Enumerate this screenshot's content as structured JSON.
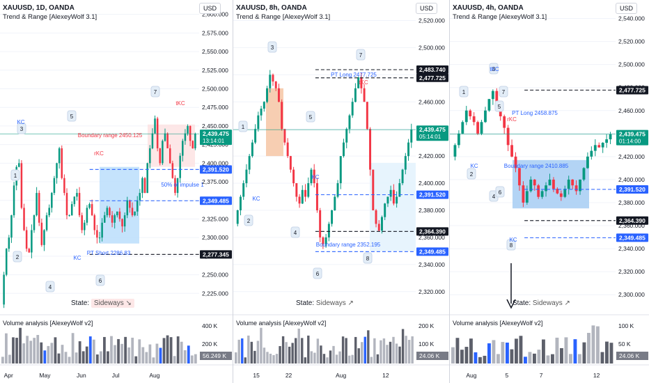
{
  "colors": {
    "up": "#089981",
    "down": "#f23645",
    "blue": "#2962ff",
    "grid": "#f0f3fa"
  },
  "panels": [
    {
      "title": "XAUUSD, 1D, OANDA",
      "subtitle": "Trend & Range [AlexeyWolf 3.1]",
      "currency": "USD",
      "state_label": "State:",
      "state_value": "Sideways ↘",
      "volume_title": "Volume analysis [AlexeyWolf v2]",
      "price_ticks": [
        "2,600.000",
        "2,575.000",
        "2,550.000",
        "2,525.000",
        "2,500.000",
        "2,475.000",
        "2,450.000",
        "2,425.000",
        "2,400.000",
        "2,375.000",
        "2,350.000",
        "2,325.000",
        "2,300.000",
        "2,275.000",
        "2,250.000",
        "2,225.000"
      ],
      "price_badges": [
        {
          "text": "2,439.475",
          "sub": "13:14:01",
          "kind": "green",
          "price": 2439.475
        },
        {
          "text": "2,391.520",
          "kind": "blue",
          "price": 2391.52
        },
        {
          "text": "2,349.485",
          "kind": "blue",
          "price": 2349.485
        },
        {
          "text": "2,277.345",
          "kind": "black",
          "price": 2277.345
        }
      ],
      "volume_badges": [
        {
          "text": "400 K",
          "kind": "tick"
        },
        {
          "text": "200 K",
          "kind": "tick"
        },
        {
          "text": "56.249 K",
          "kind": "gray"
        }
      ],
      "x_labels": [
        "Apr",
        "May",
        "Jun",
        "Jul",
        "Aug"
      ],
      "annotations": [
        "1",
        "2",
        "3",
        "4",
        "5",
        "6",
        "7",
        "KC",
        "rKC",
        "tKC",
        "KC",
        "Boundary range 2450.125",
        "50% of impulse 1",
        "PT Short 2286.83"
      ]
    },
    {
      "title": "XAUUSD, 8h, OANDA",
      "subtitle": "Trend & Range [AlexeyWolf 3.1]",
      "currency": "USD",
      "state_label": "State:",
      "state_value": "Sideways ↗",
      "volume_title": "Volume analysis [AlexeyWolf v2]",
      "price_ticks": [
        "2,520.000",
        "2,500.000",
        "2,480.000",
        "2,460.000",
        "2,440.000",
        "2,420.000",
        "2,400.000",
        "2,380.000",
        "2,360.000",
        "2,340.000",
        "2,320.000"
      ],
      "price_badges": [
        {
          "text": "2,483.740",
          "kind": "black",
          "price": 2483.74
        },
        {
          "text": "2,477.725",
          "kind": "black",
          "price": 2477.725
        },
        {
          "text": "2,439.475",
          "sub": "05:14:01",
          "kind": "green",
          "price": 2439.475
        },
        {
          "text": "2,391.520",
          "kind": "blue",
          "price": 2391.52
        },
        {
          "text": "2,364.390",
          "kind": "black",
          "price": 2364.39
        },
        {
          "text": "2,349.485",
          "kind": "blue",
          "price": 2349.485
        }
      ],
      "volume_badges": [
        {
          "text": "200 K",
          "kind": "tick"
        },
        {
          "text": "100 K",
          "kind": "tick"
        },
        {
          "text": "24.06 K",
          "kind": "gray"
        }
      ],
      "x_labels": [
        "15",
        "22",
        "Aug",
        "12"
      ],
      "annotations": [
        "1",
        "2",
        "3",
        "4",
        "5",
        "6",
        "7",
        "8",
        "KC",
        "KC",
        "tKC",
        "PT Long 2477.725",
        "Boundary range 2352.195"
      ]
    },
    {
      "title": "XAUUSD, 4h, OANDA",
      "subtitle": "Trend & Range [AlexeyWolf 3.1]",
      "currency": "USD",
      "state_label": "State:",
      "state_value": "Sideways ↗",
      "volume_title": "Volume analysis [AlexeyWolf v2]",
      "price_ticks": [
        "2,540.000",
        "2,520.000",
        "2,500.000",
        "2,480.000",
        "2,460.000",
        "2,440.000",
        "2,420.000",
        "2,400.000",
        "2,380.000",
        "2,360.000",
        "2,340.000",
        "2,320.000",
        "2,300.000"
      ],
      "price_badges": [
        {
          "text": "2,477.725",
          "kind": "black",
          "price": 2477.725
        },
        {
          "text": "2,439.475",
          "sub": "01:14:00",
          "kind": "green",
          "price": 2439.475
        },
        {
          "text": "2,391.520",
          "kind": "blue",
          "price": 2391.52
        },
        {
          "text": "2,364.390",
          "kind": "black",
          "price": 2364.39
        },
        {
          "text": "2,349.485",
          "kind": "blue",
          "price": 2349.485
        }
      ],
      "volume_badges": [
        {
          "text": "100 K",
          "kind": "tick"
        },
        {
          "text": "50 K",
          "kind": "tick"
        },
        {
          "text": "24.06 K",
          "kind": "gray"
        }
      ],
      "x_labels": [
        "Aug",
        "5",
        "7",
        "12"
      ],
      "annotations": [
        "1",
        "2",
        "3",
        "4",
        "5",
        "6",
        "7",
        "8",
        "KC",
        "KC",
        "rKC",
        "tKC",
        "PT Long 2458.875",
        "Boundary range 2410.885"
      ]
    }
  ],
  "chart_data": [
    {
      "type": "candlestick",
      "title": "XAUUSD, 1D, OANDA",
      "ylim": [
        2200,
        2610
      ],
      "x_ticks": [
        "Apr",
        "May",
        "Jun",
        "Jul",
        "Aug"
      ],
      "last_price": 2439.475,
      "levels": [
        2450.125,
        2391.52,
        2349.485,
        2277.345,
        2286.83
      ],
      "path": [
        2210,
        2250,
        2285,
        2300,
        2330,
        2370,
        2395,
        2400,
        2340,
        2310,
        2285,
        2280,
        2310,
        2330,
        2360,
        2320,
        2290,
        2310,
        2330,
        2340,
        2360,
        2380,
        2400,
        2420,
        2380,
        2360,
        2330,
        2330,
        2345,
        2355,
        2360,
        2330,
        2310,
        2320,
        2340,
        2345,
        2330,
        2310,
        2300,
        2300,
        2320,
        2330,
        2340,
        2330,
        2320,
        2330,
        2335,
        2325,
        2315,
        2330,
        2350,
        2340,
        2330,
        2335,
        2350,
        2360,
        2380,
        2360,
        2400,
        2420,
        2440,
        2460,
        2420,
        2400,
        2430,
        2440,
        2420,
        2400,
        2380,
        2360,
        2380,
        2410,
        2430,
        2440,
        2450,
        2430,
        2420,
        2439.475
      ]
    },
    {
      "type": "candlestick",
      "title": "XAUUSD, 8h, OANDA",
      "ylim": [
        2305,
        2530
      ],
      "x_ticks": [
        "15",
        "22",
        "Aug",
        "12"
      ],
      "last_price": 2439.475,
      "levels": [
        2483.74,
        2477.725,
        2391.52,
        2364.39,
        2349.485,
        2352.195
      ],
      "path": [
        2370,
        2380,
        2390,
        2400,
        2410,
        2420,
        2430,
        2440,
        2450,
        2455,
        2460,
        2470,
        2480,
        2475,
        2470,
        2460,
        2440,
        2430,
        2420,
        2410,
        2400,
        2390,
        2385,
        2395,
        2390,
        2400,
        2410,
        2400,
        2380,
        2360,
        2355,
        2360,
        2370,
        2380,
        2390,
        2400,
        2420,
        2430,
        2440,
        2450,
        2460,
        2470,
        2478,
        2470,
        2460,
        2440,
        2410,
        2380,
        2370,
        2365,
        2375,
        2385,
        2390,
        2395,
        2385,
        2390,
        2400,
        2410,
        2420,
        2430,
        2439.475
      ]
    },
    {
      "type": "candlestick",
      "title": "XAUUSD, 4h, OANDA",
      "ylim": [
        2285,
        2550
      ],
      "x_ticks": [
        "Aug",
        "5",
        "7",
        "12"
      ],
      "last_price": 2439.475,
      "levels": [
        2477.725,
        2458.875,
        2410.885,
        2391.52,
        2364.39,
        2349.485
      ],
      "path": [
        2420,
        2430,
        2440,
        2450,
        2460,
        2455,
        2450,
        2440,
        2450,
        2460,
        2470,
        2477,
        2465,
        2455,
        2445,
        2430,
        2420,
        2410,
        2395,
        2380,
        2390,
        2400,
        2395,
        2385,
        2390,
        2395,
        2400,
        2392,
        2388,
        2385,
        2392,
        2400,
        2395,
        2390,
        2400,
        2410,
        2420,
        2425,
        2430,
        2428,
        2432,
        2435,
        2439.475
      ]
    }
  ]
}
